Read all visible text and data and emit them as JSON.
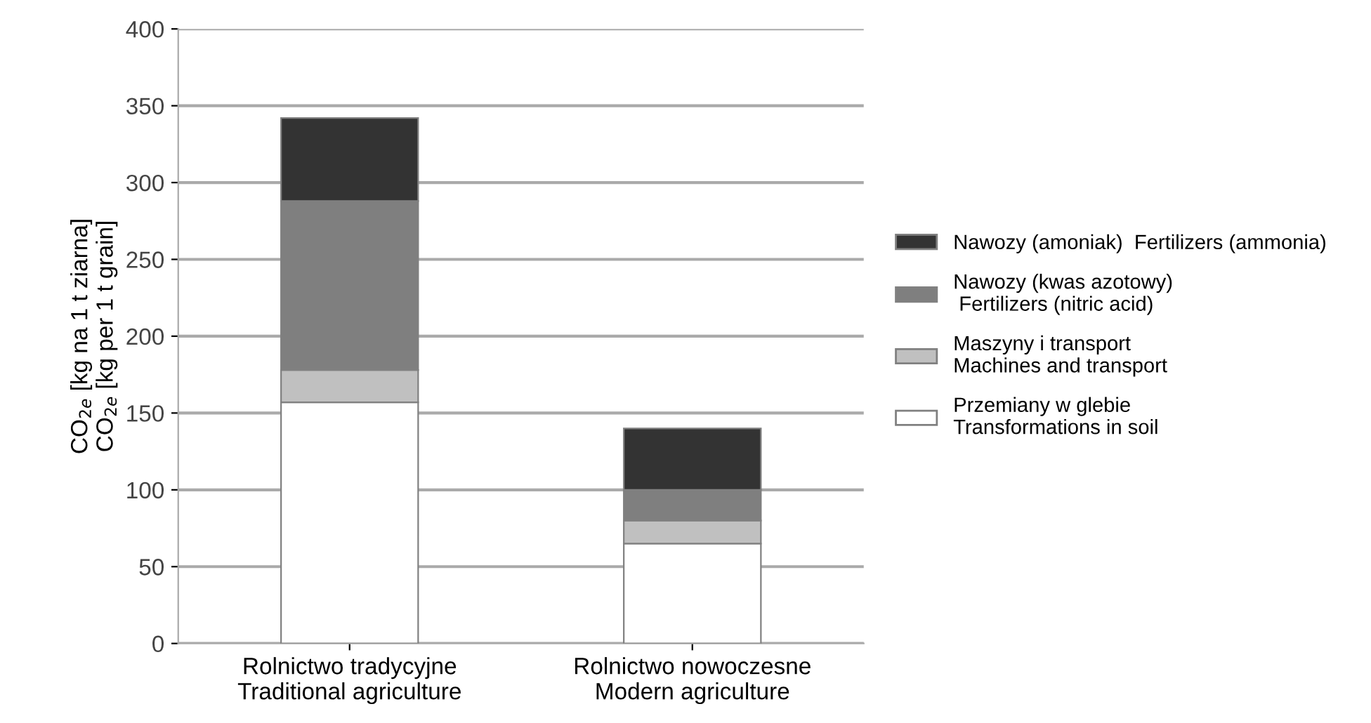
{
  "chart_data": {
    "type": "bar",
    "stacked": true,
    "categories": [
      "Rolnictwo tradycyjne\nTraditional agriculture",
      "Rolnictwo nowoczesne\nModern agriculture"
    ],
    "ylabel": "CO$_{2e}$ [kg na 1 t ziarna]\nCO$_{2e}$ [kg per 1 t grain]",
    "series": [
      {
        "name": "Przemiany w glebie\nTransformations in soil",
        "color": "#ffffff",
        "values": [
          157,
          65
        ]
      },
      {
        "name": "Maszyny i transport\nMachines and transport",
        "color": "#c0c0c0",
        "values": [
          21,
          15
        ]
      },
      {
        "name": "Nawozy (kwas azotowy)\n Fertilizers (nitric acid)",
        "color": "#7f7f7f",
        "values": [
          110,
          20
        ]
      },
      {
        "name": "Nawozy (amoniak)  Fertilizers (ammonia)",
        "color": "#333333",
        "values": [
          54,
          40
        ]
      }
    ],
    "ylim": [
      0,
      400
    ],
    "yticks": [
      0,
      50,
      100,
      150,
      200,
      250,
      300,
      350,
      400
    ],
    "grid": "y",
    "legend": "right"
  }
}
